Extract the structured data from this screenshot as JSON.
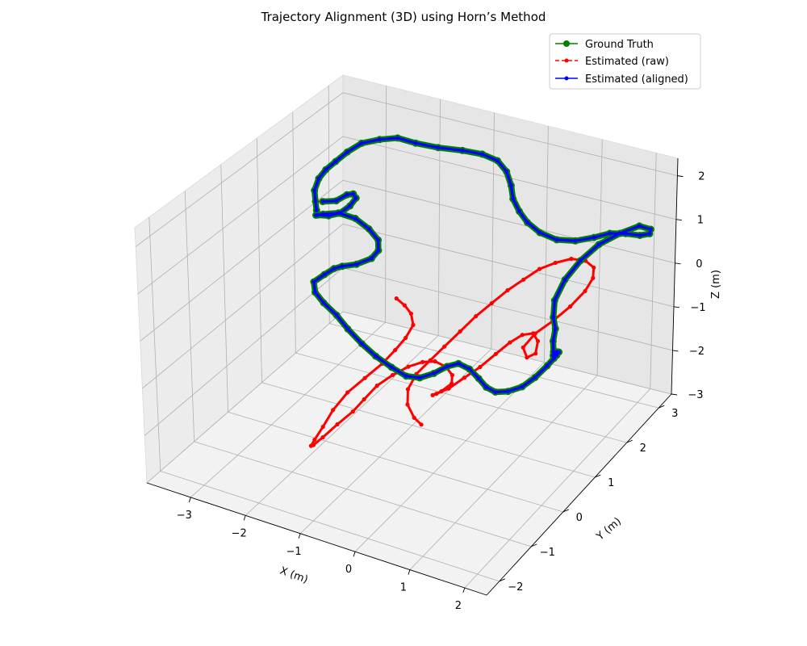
{
  "chart_data": {
    "type": "line",
    "projection": "3d",
    "title": "Trajectory Alignment (3D) using Horn’s Method",
    "xlabel": "X (m)",
    "ylabel": "Y (m)",
    "zlabel": "Z (m)",
    "xlim": [
      -3.8,
      2.4
    ],
    "ylim": [
      -2.4,
      3.4
    ],
    "zlim": [
      -3.0,
      2.4
    ],
    "x_ticks": [
      -3,
      -2,
      -1,
      0,
      1,
      2
    ],
    "y_ticks": [
      -2,
      -1,
      0,
      1,
      2,
      3
    ],
    "z_ticks": [
      -3,
      -2,
      -1,
      0,
      1,
      2
    ],
    "x_tick_labels": [
      "−3",
      "−2",
      "−1",
      "0",
      "1",
      "2"
    ],
    "y_tick_labels": [
      "−2",
      "−1",
      "0",
      "1",
      "2",
      "3"
    ],
    "z_tick_labels": [
      "−3",
      "−2",
      "−1",
      "0",
      "1",
      "2"
    ],
    "grid": true,
    "legend_position": "top-right",
    "series": [
      {
        "name": "Ground Truth",
        "color": "#008000",
        "line_style": "solid",
        "marker": "circle",
        "points": [
          [
            -3.0,
            1.6,
            0.9
          ],
          [
            -2.75,
            1.6,
            1.0
          ],
          [
            -2.55,
            1.6,
            1.2
          ],
          [
            -2.4,
            1.55,
            1.3
          ],
          [
            -2.25,
            1.4,
            1.35
          ],
          [
            -2.2,
            1.15,
            1.35
          ],
          [
            -2.25,
            0.95,
            1.3
          ],
          [
            -2.4,
            0.85,
            1.25
          ],
          [
            -2.6,
            0.85,
            1.2
          ],
          [
            -2.7,
            0.95,
            1.1
          ],
          [
            -2.7,
            1.15,
            1.0
          ],
          [
            -2.55,
            1.35,
            0.95
          ],
          [
            -2.3,
            1.45,
            0.85
          ],
          [
            -2.05,
            1.45,
            0.7
          ],
          [
            -1.85,
            1.4,
            0.55
          ],
          [
            -1.75,
            1.25,
            0.45
          ],
          [
            -1.75,
            1.05,
            0.4
          ],
          [
            -1.9,
            0.85,
            0.35
          ],
          [
            -2.1,
            0.75,
            0.3
          ],
          [
            -2.25,
            0.75,
            0.2
          ],
          [
            -2.4,
            0.7,
            0.05
          ],
          [
            -2.5,
            0.55,
            -0.05
          ],
          [
            -2.35,
            0.35,
            -0.1
          ],
          [
            -2.1,
            0.2,
            -0.15
          ],
          [
            -1.8,
            0.1,
            -0.25
          ],
          [
            -1.5,
            -0.05,
            -0.35
          ],
          [
            -1.15,
            -0.2,
            -0.45
          ],
          [
            -0.8,
            -0.35,
            -0.5
          ],
          [
            -0.45,
            -0.45,
            -0.55
          ],
          [
            -0.15,
            -0.5,
            -0.6
          ],
          [
            0.1,
            -0.5,
            -0.55
          ],
          [
            0.3,
            -0.4,
            -0.45
          ],
          [
            0.45,
            -0.25,
            -0.35
          ],
          [
            0.6,
            -0.15,
            -0.3
          ],
          [
            0.8,
            -0.15,
            -0.35
          ],
          [
            1.0,
            -0.2,
            -0.45
          ],
          [
            1.2,
            -0.3,
            -0.5
          ],
          [
            1.4,
            -0.35,
            -0.5
          ],
          [
            1.6,
            -0.3,
            -0.45
          ],
          [
            1.8,
            -0.2,
            -0.35
          ],
          [
            1.95,
            -0.05,
            -0.2
          ],
          [
            2.05,
            0.15,
            -0.05
          ],
          [
            2.1,
            0.35,
            0.05
          ],
          [
            2.05,
            0.5,
            0.0
          ],
          [
            1.95,
            0.6,
            -0.1
          ],
          [
            1.85,
            0.65,
            -0.25
          ],
          [
            1.8,
            0.75,
            -0.4
          ],
          [
            1.7,
            0.9,
            -0.4
          ],
          [
            1.6,
            1.05,
            -0.3
          ],
          [
            1.55,
            1.2,
            -0.15
          ],
          [
            1.45,
            1.3,
            0.0
          ],
          [
            1.35,
            1.5,
            0.2
          ],
          [
            1.35,
            1.8,
            0.45
          ],
          [
            1.45,
            2.1,
            0.7
          ],
          [
            1.6,
            2.4,
            0.9
          ],
          [
            1.8,
            2.7,
            1.0
          ],
          [
            2.0,
            2.95,
            1.05
          ],
          [
            2.15,
            3.05,
            0.95
          ],
          [
            2.1,
            3.1,
            0.8
          ],
          [
            1.95,
            3.05,
            0.75
          ],
          [
            1.75,
            2.95,
            0.8
          ],
          [
            1.55,
            2.8,
            0.85
          ],
          [
            1.35,
            2.65,
            0.8
          ],
          [
            1.1,
            2.5,
            0.75
          ],
          [
            0.85,
            2.35,
            0.8
          ],
          [
            0.6,
            2.25,
            0.95
          ],
          [
            0.4,
            2.2,
            1.15
          ],
          [
            0.25,
            2.2,
            1.35
          ],
          [
            0.1,
            2.25,
            1.55
          ],
          [
            0.0,
            2.35,
            1.75
          ],
          [
            -0.15,
            2.45,
            1.95
          ],
          [
            -0.35,
            2.5,
            2.1
          ],
          [
            -0.6,
            2.45,
            2.2
          ],
          [
            -0.9,
            2.35,
            2.25
          ],
          [
            -1.25,
            2.2,
            2.3
          ],
          [
            -1.6,
            2.1,
            2.35
          ],
          [
            -1.9,
            2.05,
            2.4
          ],
          [
            -2.2,
            2.0,
            2.3
          ],
          [
            -2.5,
            1.95,
            2.15
          ],
          [
            -2.7,
            1.85,
            1.95
          ],
          [
            -2.85,
            1.75,
            1.75
          ],
          [
            -3.0,
            1.7,
            1.55
          ],
          [
            -3.1,
            1.65,
            1.35
          ],
          [
            -3.15,
            1.6,
            1.1
          ],
          [
            -3.1,
            1.55,
            0.9
          ],
          [
            -3.05,
            1.5,
            0.75
          ]
        ]
      },
      {
        "name": "Estimated (raw)",
        "color": "#ff0000",
        "line_style": "dashed",
        "marker": "point",
        "points": [
          [
            -1.2,
            0.9,
            -0.2
          ],
          [
            -1.05,
            0.9,
            -0.3
          ],
          [
            -0.9,
            0.85,
            -0.4
          ],
          [
            -0.8,
            0.75,
            -0.55
          ],
          [
            -0.85,
            0.6,
            -0.75
          ],
          [
            -0.95,
            0.45,
            -0.95
          ],
          [
            -1.1,
            0.3,
            -1.2
          ],
          [
            -1.3,
            0.1,
            -1.45
          ],
          [
            -1.5,
            -0.1,
            -1.7
          ],
          [
            -1.65,
            -0.3,
            -2.0
          ],
          [
            -1.75,
            -0.45,
            -2.3
          ],
          [
            -1.85,
            -0.55,
            -2.55
          ],
          [
            -1.95,
            -0.5,
            -2.75
          ],
          [
            -2.0,
            -0.35,
            -2.85
          ],
          [
            -1.95,
            -0.15,
            -2.8
          ],
          [
            -1.8,
            0.05,
            -2.6
          ],
          [
            -1.6,
            0.2,
            -2.35
          ],
          [
            -1.45,
            0.3,
            -2.1
          ],
          [
            -1.3,
            0.45,
            -1.85
          ],
          [
            -1.1,
            0.6,
            -1.65
          ],
          [
            -0.9,
            0.75,
            -1.5
          ],
          [
            -0.7,
            0.85,
            -1.4
          ],
          [
            -0.5,
            0.9,
            -1.35
          ],
          [
            -0.3,
            0.9,
            -1.4
          ],
          [
            -0.15,
            0.85,
            -1.5
          ],
          [
            -0.1,
            0.75,
            -1.6
          ],
          [
            -0.2,
            0.6,
            -1.7
          ],
          [
            -0.3,
            0.5,
            -1.75
          ],
          [
            -0.2,
            0.45,
            -1.65
          ],
          [
            0.0,
            0.5,
            -1.5
          ],
          [
            0.2,
            0.65,
            -1.3
          ],
          [
            0.4,
            0.8,
            -1.1
          ],
          [
            0.6,
            0.95,
            -0.85
          ],
          [
            0.8,
            1.05,
            -0.6
          ],
          [
            1.0,
            1.1,
            -0.4
          ],
          [
            1.2,
            1.1,
            -0.3
          ],
          [
            1.35,
            1.0,
            -0.35
          ],
          [
            1.4,
            0.85,
            -0.5
          ],
          [
            1.3,
            0.75,
            -0.55
          ],
          [
            1.2,
            0.8,
            -0.4
          ],
          [
            1.3,
            1.0,
            -0.2
          ],
          [
            1.5,
            1.2,
            0.0
          ],
          [
            1.7,
            1.4,
            0.25
          ],
          [
            1.85,
            1.6,
            0.5
          ],
          [
            1.9,
            1.75,
            0.7
          ],
          [
            1.85,
            1.85,
            0.85
          ],
          [
            1.7,
            1.85,
            0.95
          ],
          [
            1.5,
            1.75,
            1.0
          ],
          [
            1.3,
            1.6,
            0.95
          ],
          [
            1.1,
            1.45,
            0.85
          ],
          [
            0.9,
            1.3,
            0.65
          ],
          [
            0.7,
            1.15,
            0.45
          ],
          [
            0.5,
            1.0,
            0.2
          ],
          [
            0.3,
            0.85,
            -0.05
          ],
          [
            0.1,
            0.7,
            -0.35
          ],
          [
            -0.1,
            0.55,
            -0.65
          ],
          [
            -0.3,
            0.45,
            -0.95
          ],
          [
            -0.5,
            0.35,
            -1.25
          ],
          [
            -0.6,
            0.25,
            -1.55
          ],
          [
            -0.55,
            0.15,
            -1.8
          ],
          [
            -0.4,
            0.1,
            -2.0
          ],
          [
            -0.3,
            0.15,
            -2.15
          ]
        ]
      },
      {
        "name": "Estimated (aligned)",
        "color": "#0000ff",
        "line_style": "solid",
        "marker": "point",
        "points": [
          [
            -3.0,
            1.6,
            0.9
          ],
          [
            -2.75,
            1.6,
            1.0
          ],
          [
            -2.55,
            1.6,
            1.2
          ],
          [
            -2.4,
            1.55,
            1.3
          ],
          [
            -2.25,
            1.4,
            1.35
          ],
          [
            -2.2,
            1.15,
            1.35
          ],
          [
            -2.25,
            0.95,
            1.3
          ],
          [
            -2.4,
            0.85,
            1.25
          ],
          [
            -2.6,
            0.85,
            1.2
          ],
          [
            -2.7,
            0.95,
            1.1
          ],
          [
            -2.7,
            1.15,
            1.0
          ],
          [
            -2.55,
            1.35,
            0.95
          ],
          [
            -2.3,
            1.45,
            0.85
          ],
          [
            -2.05,
            1.45,
            0.7
          ],
          [
            -1.85,
            1.4,
            0.55
          ],
          [
            -1.75,
            1.25,
            0.45
          ],
          [
            -1.75,
            1.05,
            0.4
          ],
          [
            -1.9,
            0.85,
            0.35
          ],
          [
            -2.1,
            0.75,
            0.3
          ],
          [
            -2.25,
            0.75,
            0.2
          ],
          [
            -2.4,
            0.7,
            0.05
          ],
          [
            -2.5,
            0.55,
            -0.05
          ],
          [
            -2.35,
            0.35,
            -0.1
          ],
          [
            -2.1,
            0.2,
            -0.15
          ],
          [
            -1.8,
            0.1,
            -0.25
          ],
          [
            -1.5,
            -0.05,
            -0.35
          ],
          [
            -1.15,
            -0.2,
            -0.45
          ],
          [
            -0.8,
            -0.35,
            -0.5
          ],
          [
            -0.45,
            -0.45,
            -0.55
          ],
          [
            -0.15,
            -0.5,
            -0.6
          ],
          [
            0.1,
            -0.5,
            -0.55
          ],
          [
            0.3,
            -0.4,
            -0.45
          ],
          [
            0.45,
            -0.25,
            -0.35
          ],
          [
            0.6,
            -0.15,
            -0.3
          ],
          [
            0.8,
            -0.15,
            -0.35
          ],
          [
            1.0,
            -0.2,
            -0.45
          ],
          [
            1.2,
            -0.3,
            -0.5
          ],
          [
            1.4,
            -0.35,
            -0.5
          ],
          [
            1.6,
            -0.3,
            -0.45
          ],
          [
            1.8,
            -0.2,
            -0.35
          ],
          [
            1.95,
            -0.05,
            -0.2
          ],
          [
            2.05,
            0.15,
            -0.05
          ],
          [
            2.1,
            0.35,
            0.05
          ],
          [
            2.05,
            0.5,
            0.0
          ],
          [
            1.95,
            0.6,
            -0.1
          ],
          [
            1.85,
            0.65,
            -0.25
          ],
          [
            1.8,
            0.75,
            -0.4
          ],
          [
            1.7,
            0.9,
            -0.4
          ],
          [
            1.6,
            1.05,
            -0.3
          ],
          [
            1.55,
            1.2,
            -0.15
          ],
          [
            1.45,
            1.3,
            0.0
          ],
          [
            1.35,
            1.5,
            0.2
          ],
          [
            1.35,
            1.8,
            0.45
          ],
          [
            1.45,
            2.1,
            0.7
          ],
          [
            1.6,
            2.4,
            0.9
          ],
          [
            1.8,
            2.7,
            1.0
          ],
          [
            2.0,
            2.95,
            1.05
          ],
          [
            2.15,
            3.05,
            0.95
          ],
          [
            2.1,
            3.1,
            0.8
          ],
          [
            1.95,
            3.05,
            0.75
          ],
          [
            1.75,
            2.95,
            0.8
          ],
          [
            1.55,
            2.8,
            0.85
          ],
          [
            1.35,
            2.65,
            0.8
          ],
          [
            1.1,
            2.5,
            0.75
          ],
          [
            0.85,
            2.35,
            0.8
          ],
          [
            0.6,
            2.25,
            0.95
          ],
          [
            0.4,
            2.2,
            1.15
          ],
          [
            0.25,
            2.2,
            1.35
          ],
          [
            0.1,
            2.25,
            1.55
          ],
          [
            0.0,
            2.35,
            1.75
          ],
          [
            -0.15,
            2.45,
            1.95
          ],
          [
            -0.35,
            2.5,
            2.1
          ],
          [
            -0.6,
            2.45,
            2.2
          ],
          [
            -0.9,
            2.35,
            2.25
          ],
          [
            -1.25,
            2.2,
            2.3
          ],
          [
            -1.6,
            2.1,
            2.35
          ],
          [
            -1.9,
            2.05,
            2.4
          ],
          [
            -2.2,
            2.0,
            2.3
          ],
          [
            -2.5,
            1.95,
            2.15
          ],
          [
            -2.7,
            1.85,
            1.95
          ],
          [
            -2.85,
            1.75,
            1.75
          ],
          [
            -3.0,
            1.7,
            1.55
          ],
          [
            -3.1,
            1.65,
            1.35
          ],
          [
            -3.15,
            1.6,
            1.1
          ],
          [
            -3.1,
            1.55,
            0.9
          ],
          [
            -3.05,
            1.5,
            0.75
          ]
        ]
      }
    ]
  }
}
